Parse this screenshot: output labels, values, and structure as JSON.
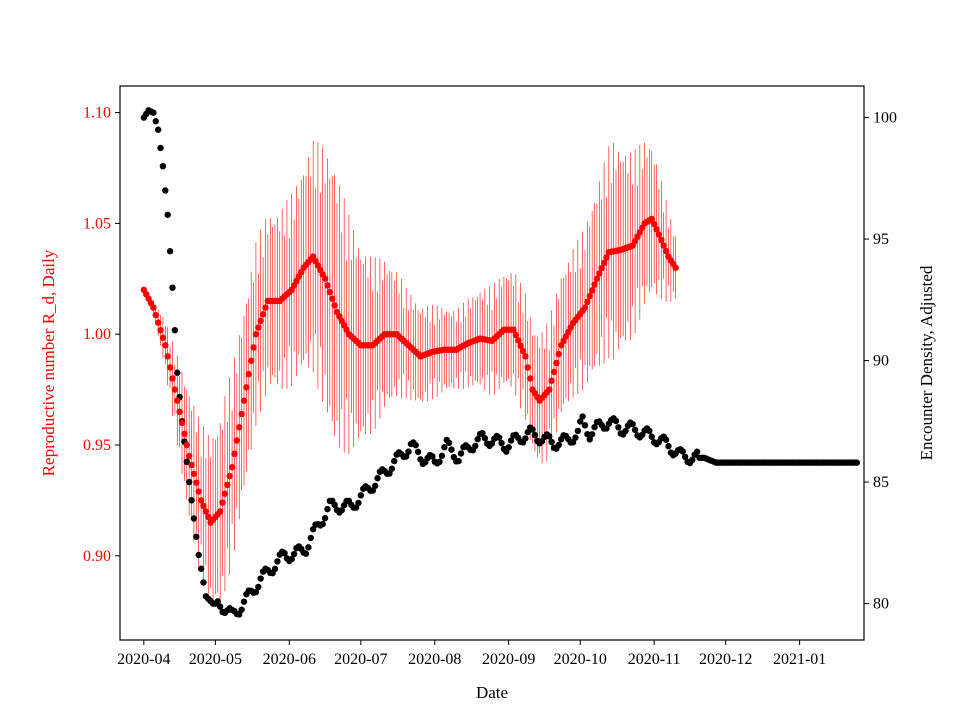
{
  "chart_data": {
    "type": "scatter",
    "title": "",
    "xlabel": "Date",
    "ylabel_left": "Reproductive number R_d, Daily",
    "ylabel_right": "Encounter Density, Adjusted",
    "xlim": [
      "2020-03-22",
      "2021-01-28"
    ],
    "ylim_left": [
      0.862,
      1.112
    ],
    "ylim_right": [
      78.5,
      101.3
    ],
    "grid": false,
    "x_ticks": [
      "2020-04",
      "2020-05",
      "2020-06",
      "2020-07",
      "2020-08",
      "2020-09",
      "2020-10",
      "2020-11",
      "2020-12",
      "2021-01"
    ],
    "y_ticks_left": [
      "0.90",
      "0.95",
      "1.00",
      "1.05",
      "1.10"
    ],
    "y_ticks_right": [
      "80",
      "85",
      "90",
      "95",
      "100"
    ],
    "colors": {
      "r_series": "#ff0000",
      "encounter_series": "#000000",
      "left_axis": "#ff0000",
      "right_axis": "#000000"
    },
    "series": [
      {
        "key": "rd",
        "axis": "left",
        "marker": "circle",
        "color": "#ff0000",
        "knots": [
          [
            "2020-04-01",
            1.02
          ],
          [
            "2020-04-05",
            1.012
          ],
          [
            "2020-04-10",
            0.995
          ],
          [
            "2020-04-15",
            0.97
          ],
          [
            "2020-04-20",
            0.945
          ],
          [
            "2020-04-25",
            0.925
          ],
          [
            "2020-04-29",
            0.915
          ],
          [
            "2020-05-03",
            0.92
          ],
          [
            "2020-05-08",
            0.94
          ],
          [
            "2020-05-13",
            0.97
          ],
          [
            "2020-05-18",
            1.0
          ],
          [
            "2020-05-23",
            1.015
          ],
          [
            "2020-05-28",
            1.015
          ],
          [
            "2020-06-02",
            1.02
          ],
          [
            "2020-06-07",
            1.03
          ],
          [
            "2020-06-11",
            1.035
          ],
          [
            "2020-06-16",
            1.025
          ],
          [
            "2020-06-21",
            1.01
          ],
          [
            "2020-06-26",
            1.0
          ],
          [
            "2020-07-01",
            0.995
          ],
          [
            "2020-07-06",
            0.995
          ],
          [
            "2020-07-11",
            1.0
          ],
          [
            "2020-07-16",
            1.0
          ],
          [
            "2020-07-21",
            0.995
          ],
          [
            "2020-07-26",
            0.99
          ],
          [
            "2020-07-31",
            0.992
          ],
          [
            "2020-08-05",
            0.993
          ],
          [
            "2020-08-10",
            0.993
          ],
          [
            "2020-08-15",
            0.996
          ],
          [
            "2020-08-20",
            0.998
          ],
          [
            "2020-08-25",
            0.997
          ],
          [
            "2020-08-30",
            1.002
          ],
          [
            "2020-09-03",
            1.002
          ],
          [
            "2020-09-08",
            0.99
          ],
          [
            "2020-09-11",
            0.975
          ],
          [
            "2020-09-14",
            0.97
          ],
          [
            "2020-09-18",
            0.975
          ],
          [
            "2020-09-23",
            0.995
          ],
          [
            "2020-09-28",
            1.005
          ],
          [
            "2020-10-03",
            1.012
          ],
          [
            "2020-10-08",
            1.025
          ],
          [
            "2020-10-13",
            1.037
          ],
          [
            "2020-10-18",
            1.038
          ],
          [
            "2020-10-23",
            1.04
          ],
          [
            "2020-10-28",
            1.05
          ],
          [
            "2020-10-31",
            1.052
          ],
          [
            "2020-11-03",
            1.045
          ],
          [
            "2020-11-07",
            1.035
          ],
          [
            "2020-11-10",
            1.03
          ]
        ],
        "error_halfwidth": [
          [
            "2020-04-01",
            0.0
          ],
          [
            "2020-04-06",
            0.005
          ],
          [
            "2020-04-12",
            0.015
          ],
          [
            "2020-04-20",
            0.03
          ],
          [
            "2020-05-05",
            0.045
          ],
          [
            "2020-05-25",
            0.04
          ],
          [
            "2020-06-05",
            0.045
          ],
          [
            "2020-06-20",
            0.065
          ],
          [
            "2020-07-01",
            0.045
          ],
          [
            "2020-07-20",
            0.025
          ],
          [
            "2020-08-10",
            0.018
          ],
          [
            "2020-08-25",
            0.025
          ],
          [
            "2020-09-12",
            0.03
          ],
          [
            "2020-10-01",
            0.035
          ],
          [
            "2020-10-15",
            0.05
          ],
          [
            "2020-10-31",
            0.035
          ],
          [
            "2020-11-10",
            0.015
          ]
        ]
      },
      {
        "key": "encounter",
        "axis": "right",
        "marker": "circle",
        "color": "#000000",
        "knots": [
          [
            "2020-04-01",
            100.0
          ],
          [
            "2020-04-03",
            100.3
          ],
          [
            "2020-04-05",
            100.2
          ],
          [
            "2020-04-07",
            99.5
          ],
          [
            "2020-04-09",
            98.0
          ],
          [
            "2020-04-11",
            96.0
          ],
          [
            "2020-04-13",
            93.0
          ],
          [
            "2020-04-15",
            89.5
          ],
          [
            "2020-04-17",
            87.5
          ],
          [
            "2020-04-20",
            85.0
          ],
          [
            "2020-04-24",
            82.0
          ],
          [
            "2020-04-27",
            80.3
          ],
          [
            "2020-04-30",
            80.0
          ],
          [
            "2020-05-03",
            80.0
          ],
          [
            "2020-05-06",
            79.7
          ],
          [
            "2020-05-08",
            79.5
          ],
          [
            "2020-05-11",
            79.8
          ],
          [
            "2020-05-15",
            80.3
          ],
          [
            "2020-05-20",
            81.0
          ],
          [
            "2020-05-25",
            81.5
          ],
          [
            "2020-05-30",
            82.0
          ],
          [
            "2020-06-03",
            82.0
          ],
          [
            "2020-06-08",
            82.3
          ],
          [
            "2020-06-13",
            83.2
          ],
          [
            "2020-06-18",
            84.0
          ],
          [
            "2020-06-23",
            84.0
          ],
          [
            "2020-06-27",
            84.0
          ],
          [
            "2020-07-02",
            84.5
          ],
          [
            "2020-07-07",
            85.0
          ],
          [
            "2020-07-12",
            85.5
          ],
          [
            "2020-07-17",
            86.0
          ],
          [
            "2020-07-22",
            86.5
          ],
          [
            "2020-07-27",
            86.0
          ],
          [
            "2020-08-01",
            85.8
          ],
          [
            "2020-08-06",
            86.5
          ],
          [
            "2020-08-11",
            86.0
          ],
          [
            "2020-08-16",
            86.5
          ],
          [
            "2020-08-21",
            86.8
          ],
          [
            "2020-08-26",
            86.7
          ],
          [
            "2020-08-31",
            86.5
          ],
          [
            "2020-09-05",
            86.8
          ],
          [
            "2020-09-10",
            87.0
          ],
          [
            "2020-09-15",
            86.8
          ],
          [
            "2020-09-20",
            86.6
          ],
          [
            "2020-09-25",
            86.7
          ],
          [
            "2020-09-30",
            87.0
          ],
          [
            "2020-10-02",
            87.5
          ],
          [
            "2020-10-05",
            87.0
          ],
          [
            "2020-10-09",
            87.3
          ],
          [
            "2020-10-13",
            87.5
          ],
          [
            "2020-10-18",
            87.2
          ],
          [
            "2020-10-23",
            87.2
          ],
          [
            "2020-10-28",
            87.0
          ],
          [
            "2020-11-02",
            86.8
          ],
          [
            "2020-11-07",
            86.5
          ],
          [
            "2020-11-12",
            86.1
          ],
          [
            "2020-11-17",
            86.0
          ],
          [
            "2020-11-22",
            86.0
          ],
          [
            "2020-11-27",
            85.8
          ],
          [
            "2021-01-25",
            85.8
          ]
        ]
      }
    ]
  }
}
